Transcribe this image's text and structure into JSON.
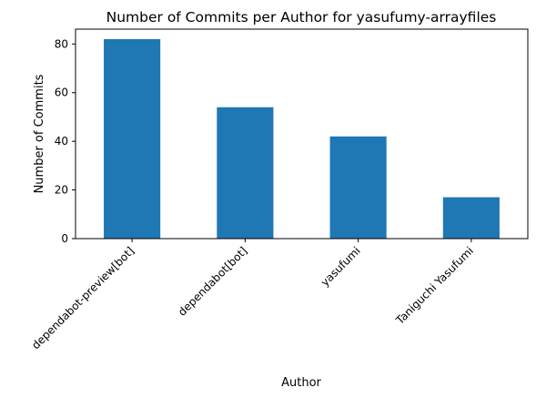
{
  "chart_data": {
    "type": "bar",
    "title": "Number of Commits per Author for yasufumy-arrayfiles",
    "xlabel": "Author",
    "ylabel": "Number of Commits",
    "categories": [
      "dependabot-preview[bot]",
      "dependabot[bot]",
      "yasufumi",
      "Taniguchi Yasufumi"
    ],
    "values": [
      82,
      54,
      42,
      17
    ],
    "ylim": [
      0,
      86.1
    ],
    "yticks": [
      0,
      20,
      40,
      60,
      80
    ],
    "ytick_labels": [
      "0",
      "20",
      "40",
      "60",
      "80"
    ],
    "grid": false,
    "legend": "none",
    "bar_color": "#1f77b4"
  }
}
